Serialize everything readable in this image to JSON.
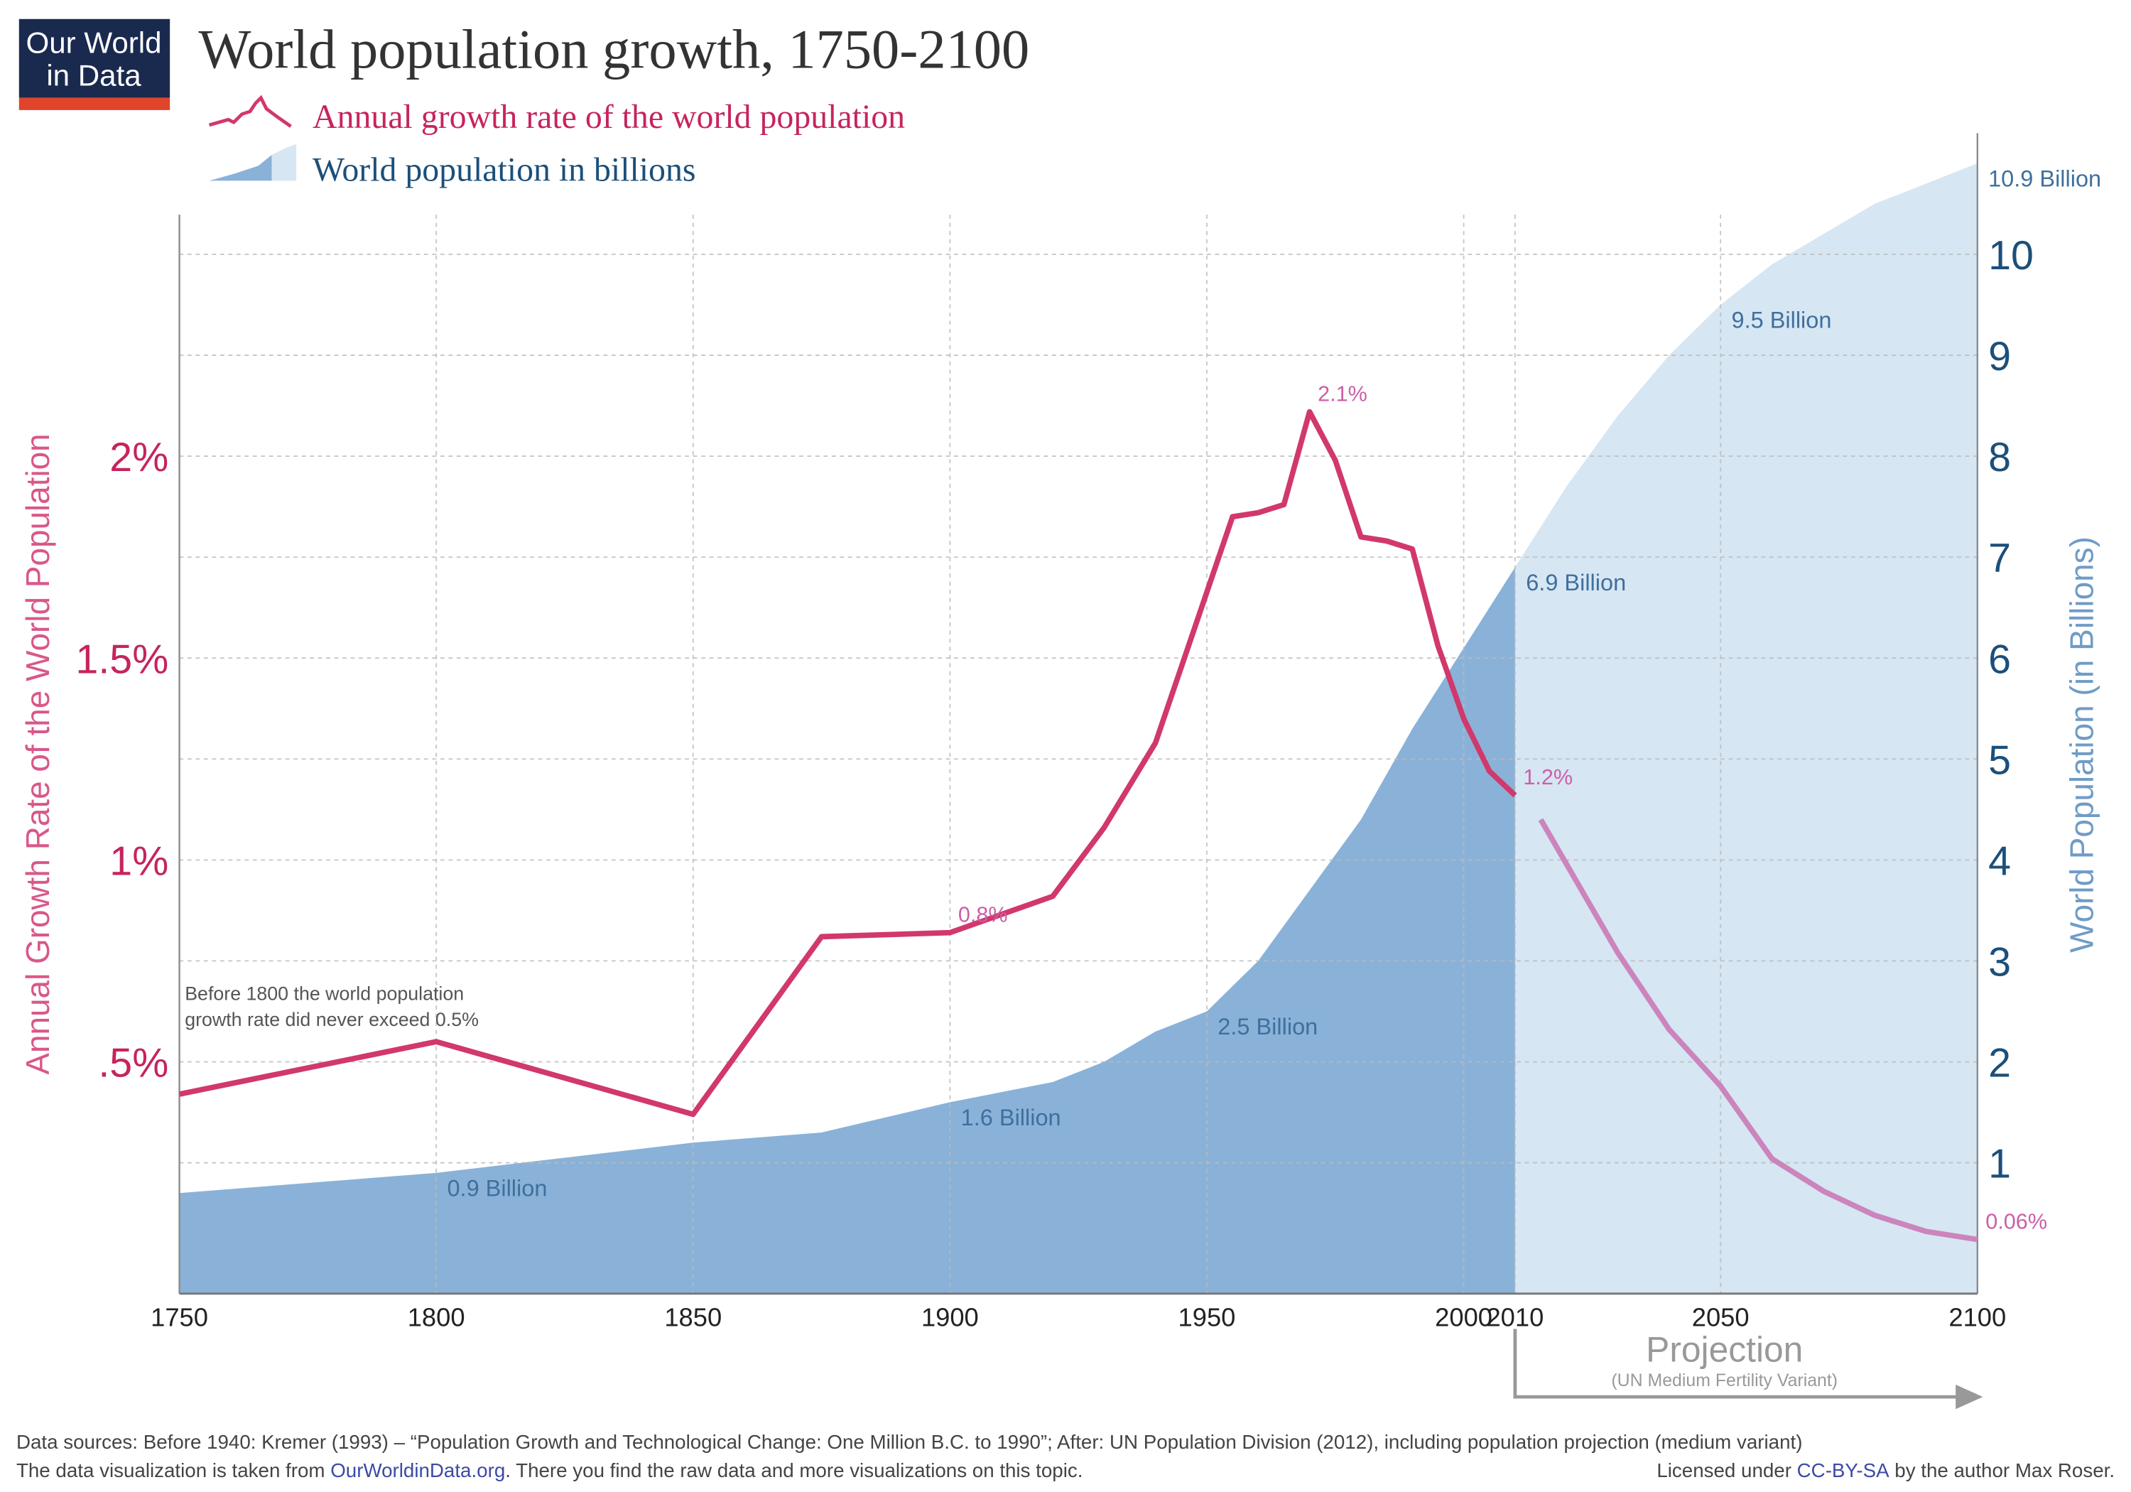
{
  "logo": {
    "lines": [
      "Our World",
      "in Data"
    ]
  },
  "chart_data": {
    "type": "line",
    "title": "World population growth, 1750-2100",
    "y_label": "Annual Growth Rate of the World Population",
    "y2_label": "World Population (in Billions)",
    "xlim": [
      1750,
      2100
    ],
    "xticks": [
      1750,
      1800,
      1850,
      1900,
      1950,
      2000,
      2010,
      2050,
      2100
    ],
    "ylim": [
      -0.074,
      2.8
    ],
    "yticks": [
      {
        "value": 0.5,
        "label": ".5%"
      },
      {
        "value": 1,
        "label": "1%"
      },
      {
        "value": 1.5,
        "label": "1.5%"
      },
      {
        "value": 2,
        "label": "2%"
      }
    ],
    "y2lim": [
      -0.296,
      11.2
    ],
    "y2ticks": [
      1,
      2,
      3,
      4,
      5,
      6,
      7,
      8,
      9,
      10
    ],
    "grid": true,
    "projection": {
      "from": 2010,
      "label": "Projection",
      "note": "(UN Medium Fertility Variant)"
    },
    "note": [
      "Before 1800 the world population",
      "growth rate did never exceed 0.5%"
    ],
    "series": [
      {
        "name": "Annual growth rate of the world population",
        "type": "line",
        "axis": "y",
        "color": "#d1386b",
        "projection_color": "#cc84bc",
        "x": [
          1750,
          1800,
          1850,
          1875,
          1900,
          1920,
          1930,
          1940,
          1955,
          1960,
          1965,
          1970,
          1975,
          1980,
          1985,
          1990,
          1995,
          2000,
          2005,
          2010,
          2012,
          2015,
          2020,
          2030,
          2040,
          2050,
          2060,
          2070,
          2080,
          2090,
          2100
        ],
        "values": [
          0.42,
          0.55,
          0.37,
          0.81,
          0.82,
          0.91,
          1.08,
          1.29,
          1.85,
          1.86,
          1.88,
          2.11,
          1.99,
          1.8,
          1.79,
          1.77,
          1.53,
          1.35,
          1.22,
          1.16,
          null,
          1.1,
          0.99,
          0.77,
          0.58,
          0.44,
          0.26,
          0.18,
          0.12,
          0.08,
          0.06
        ],
        "value_labels": [
          null,
          null,
          null,
          null,
          "0.8%",
          null,
          null,
          null,
          null,
          null,
          null,
          "2.1%",
          null,
          null,
          null,
          null,
          null,
          null,
          null,
          "1.2%",
          null,
          null,
          null,
          null,
          null,
          null,
          null,
          null,
          null,
          null,
          "0.06%"
        ]
      },
      {
        "name": "World population in billions",
        "type": "area",
        "axis": "y2",
        "color": "#8ab2d8",
        "projection_color": "#d6e6f3",
        "x": [
          1750,
          1800,
          1850,
          1875,
          1900,
          1920,
          1930,
          1940,
          1950,
          1960,
          1970,
          1980,
          1990,
          2000,
          2010,
          2020,
          2030,
          2040,
          2050,
          2060,
          2070,
          2080,
          2090,
          2100
        ],
        "values": [
          0.7,
          0.9,
          1.2,
          1.3,
          1.6,
          1.8,
          2.0,
          2.3,
          2.5,
          3.0,
          3.7,
          4.4,
          5.3,
          6.1,
          6.9,
          7.7,
          8.4,
          9.0,
          9.5,
          9.9,
          10.2,
          10.5,
          10.7,
          10.9
        ],
        "value_labels": [
          null,
          "0.9 Billion",
          null,
          null,
          "1.6 Billion",
          null,
          null,
          null,
          "2.5 Billion",
          null,
          null,
          null,
          null,
          null,
          "6.9 Billion",
          null,
          null,
          null,
          "9.5 Billion",
          null,
          null,
          null,
          null,
          "10.9 Billion"
        ]
      }
    ]
  },
  "footer": {
    "sources": "Data sources:  Before 1940: Kremer (1993) – “Population Growth and Technological Change: One Million B.C. to 1990”; After: UN Population Division (2012), including population projection (medium variant)",
    "left": [
      "The data visualization is taken from ",
      "OurWorldinData.org",
      ". There you find the raw data and more visualizations on this topic."
    ],
    "right": [
      "Licensed under ",
      "CC-BY-SA",
      " by the author Max Roser."
    ]
  }
}
